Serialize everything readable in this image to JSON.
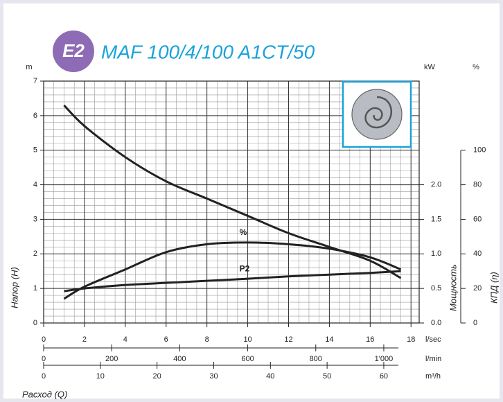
{
  "chart_data": {
    "type": "line",
    "badge": "E2",
    "title": "MAF 100/4/100 A1CT/50",
    "xlabel": "Расход (Q)",
    "ylabel": "Напор (H)",
    "y2label": "Мощность",
    "y3label": "КПД (η)",
    "xunit": "l/sec",
    "yunit": "m",
    "y2unit": "kW",
    "y3unit": "%",
    "xlim": [
      0,
      18.4
    ],
    "xticks": [
      0,
      2,
      4,
      6,
      8,
      10,
      12,
      14,
      16,
      18
    ],
    "ylim": [
      0,
      7
    ],
    "yticks": [
      0,
      1,
      2,
      3,
      4,
      5,
      6,
      7
    ],
    "y2lim": [
      0,
      3.5
    ],
    "y2ticks": [
      {
        "value": 0,
        "label": "0.0"
      },
      0.5,
      {
        "value": 1,
        "label": "1.0"
      },
      1.5,
      {
        "value": 2,
        "label": "2.0"
      }
    ],
    "y3lim": [
      0,
      140
    ],
    "y3ticks": [
      0,
      20,
      40,
      60,
      80,
      100
    ],
    "grid": true,
    "minor_grid": {
      "x": 0.5,
      "y": 0.2
    },
    "x2": {
      "unit": "l/min",
      "lim": [
        0,
        1104
      ],
      "ticks": [
        0,
        200,
        400,
        600,
        800,
        {
          "value": 1000,
          "label": "1'000"
        }
      ]
    },
    "x3": {
      "unit": "m³/h",
      "lim": [
        0,
        66.24
      ],
      "ticks": [
        0,
        10,
        20,
        30,
        40,
        50,
        60
      ]
    },
    "x": [
      1,
      2,
      4,
      6,
      8,
      10,
      12,
      14,
      16,
      17.5
    ],
    "series": [
      {
        "color": "#222222",
        "values": [
          6.3,
          5.7,
          4.8,
          4.1,
          3.6,
          3.1,
          2.6,
          2.2,
          1.8,
          1.3
        ]
      },
      {
        "name": "%",
        "axis": "y3",
        "color": "#222222",
        "values": [
          14,
          21,
          31,
          41,
          45.6,
          46.6,
          45.6,
          43,
          38,
          31
        ]
      },
      {
        "name": "P2",
        "axis": "y2",
        "color": "#222222",
        "values": [
          0.46,
          0.5,
          0.55,
          0.58,
          0.61,
          0.64,
          0.675,
          0.7,
          0.725,
          0.75
        ]
      }
    ]
  }
}
